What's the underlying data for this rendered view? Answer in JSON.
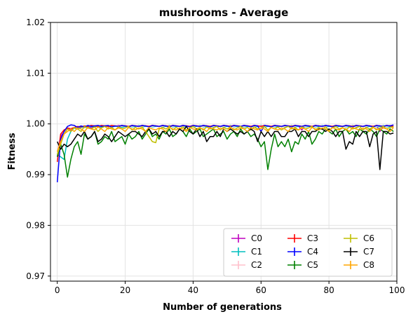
{
  "chart_data": {
    "type": "line",
    "title": "mushrooms - Average",
    "xlabel": "Number of generations",
    "ylabel": "Fitness",
    "xlim": [
      -2,
      100
    ],
    "ylim": [
      0.969,
      1.02
    ],
    "xticks": [
      0,
      20,
      40,
      60,
      80,
      100
    ],
    "xtick_labels": [
      "0",
      "20",
      "40",
      "60",
      "80",
      "100"
    ],
    "yticks": [
      0.97,
      0.98,
      0.99,
      1.0,
      1.01,
      1.02
    ],
    "ytick_labels": [
      "0.97",
      "0.98",
      "0.99",
      "1.00",
      "1.01",
      "1.02"
    ],
    "grid": true,
    "legend": {
      "position": "lower-right",
      "columns": 3
    },
    "series": [
      {
        "name": "C0",
        "color": "#bf00bf",
        "x_start": 0,
        "values": [
          0.9935,
          0.9975,
          0.9985,
          0.999,
          0.9988,
          0.9992,
          0.999,
          0.9994,
          0.9993,
          0.9995,
          0.9992,
          0.9996,
          0.9995,
          0.9993,
          0.9997,
          0.9995,
          0.9994,
          0.9996,
          0.9997,
          0.9995,
          0.9996,
          0.9994,
          0.9997,
          0.9996,
          0.9995,
          0.9997,
          0.9996,
          0.9995,
          0.9997,
          0.9996,
          0.9995,
          0.9997,
          0.9996,
          0.9994,
          0.9997,
          0.9996,
          0.9995,
          0.9997,
          0.9996,
          0.9995,
          0.9997,
          0.9996,
          0.9995,
          0.9997,
          0.9996,
          0.9994,
          0.9997,
          0.9996,
          0.9995,
          0.9997,
          0.9996,
          0.9995,
          0.9997,
          0.9996,
          0.9995,
          0.9997,
          0.9996,
          0.9995,
          0.9997,
          0.9996,
          0.9995,
          0.9997,
          0.9996,
          0.9995,
          0.9997,
          0.9996,
          0.9995,
          0.9997,
          0.9996,
          0.9995,
          0.9997,
          0.9996,
          0.9988,
          0.9997,
          0.9996,
          0.9995,
          0.9997,
          0.9996,
          0.9995,
          0.9997,
          0.9996,
          0.9995,
          0.9997,
          0.9996,
          0.9995,
          0.9997,
          0.9996,
          0.9995,
          0.9997,
          0.9996,
          0.9995,
          0.9997,
          0.9996,
          0.9995,
          0.9997,
          0.9985,
          0.9996,
          0.9995,
          0.9997,
          0.9996
        ]
      },
      {
        "name": "C1",
        "color": "#00bfbf",
        "x_start": 0,
        "values": [
          0.994,
          0.9935,
          0.993,
          0.997,
          0.9985,
          0.9992,
          0.999,
          0.9993,
          0.9994,
          0.9992,
          0.9995,
          0.9994,
          0.9996,
          0.9993,
          0.9995,
          0.9996,
          0.9994,
          0.9995,
          0.9996,
          0.9993,
          0.9995,
          0.9996,
          0.9994,
          0.9995,
          0.9997,
          0.9994,
          0.9995,
          0.9996,
          0.9994,
          0.9995,
          0.9996,
          0.9994,
          0.9995,
          0.9997,
          0.9994,
          0.9995,
          0.9996,
          0.9994,
          0.9995,
          0.9996,
          0.9994,
          0.9995,
          0.9997,
          0.9994,
          0.9995,
          0.9996,
          0.9994,
          0.9995,
          0.9996,
          0.9994,
          0.9995,
          0.9997,
          0.9994,
          0.9995,
          0.9996,
          0.9994,
          0.9995,
          0.9996,
          0.9994,
          0.9995,
          0.9997,
          0.9994,
          0.9995,
          0.9996,
          0.9994,
          0.9995,
          0.9996,
          0.9994,
          0.9995,
          0.9997,
          0.9994,
          0.9995,
          0.9996,
          0.9994,
          0.9995,
          0.9996,
          0.9994,
          0.9995,
          0.9997,
          0.9994,
          0.9995,
          0.9996,
          0.9994,
          0.9995,
          0.9996,
          0.9994,
          0.9995,
          0.9997,
          0.9994,
          0.9995,
          0.9996,
          0.9994,
          0.9995,
          0.9996,
          0.9994,
          0.9995,
          0.9997,
          0.9994,
          0.9995,
          0.9996
        ]
      },
      {
        "name": "C2",
        "color": "#ffc0cb",
        "x_start": 0,
        "values": [
          0.9945,
          0.998,
          0.9985,
          0.999,
          0.9992,
          0.9993,
          0.9994,
          0.9995,
          0.9994,
          0.9996,
          0.9995,
          0.9997,
          0.9996,
          0.9995,
          0.9997,
          0.9996,
          0.9995,
          0.9997,
          0.9996,
          0.9995,
          0.9997,
          0.9996,
          0.9995,
          0.9997,
          0.9996,
          0.9995,
          0.9997,
          0.9996,
          0.9995,
          0.9997,
          0.9996,
          0.9995,
          0.9997,
          0.9996,
          0.9995,
          0.9997,
          0.9996,
          0.9995,
          0.9997,
          0.9996,
          0.9995,
          0.9997,
          0.9996,
          0.9995,
          0.9997,
          0.9996,
          0.9995,
          0.9997,
          0.9996,
          0.9995,
          0.9997,
          0.9996,
          0.9995,
          0.9997,
          0.9996,
          0.9995,
          0.9997,
          0.9996,
          0.9995,
          0.9997,
          0.9996,
          0.9995,
          0.9997,
          0.9996,
          0.9995,
          0.9997,
          0.9996,
          0.9995,
          0.9997,
          0.9996,
          0.9995,
          0.9997,
          0.9996,
          0.9995,
          0.9997,
          0.9996,
          0.9995,
          0.9997,
          0.9996,
          0.9995,
          0.9997,
          0.9996,
          0.9995,
          0.9997,
          0.9996,
          0.9995,
          0.9997,
          0.9996,
          0.9995,
          0.9997,
          0.9996,
          0.9995,
          0.9997,
          0.9996,
          0.9995,
          0.9997,
          0.9996,
          0.9995,
          0.9997,
          0.9996
        ]
      },
      {
        "name": "C3",
        "color": "#ff0000",
        "x_start": 0,
        "values": [
          0.9925,
          0.998,
          0.9988,
          0.9992,
          0.999,
          0.9993,
          0.9995,
          0.9994,
          0.9996,
          0.9995,
          0.9997,
          0.9996,
          0.9995,
          0.9997,
          0.9996,
          0.9995,
          0.9997,
          0.9996,
          0.9995,
          0.9997,
          0.9996,
          0.9995,
          0.9997,
          0.9996,
          0.9995,
          0.9997,
          0.9996,
          0.9995,
          0.9997,
          0.9996,
          0.9995,
          0.9997,
          0.9996,
          0.9995,
          0.9997,
          0.9996,
          0.9995,
          0.9997,
          0.9996,
          0.9995,
          0.9997,
          0.9996,
          0.9995,
          0.9997,
          0.9996,
          0.9995,
          0.9997,
          0.9996,
          0.9995,
          0.9997,
          0.9996,
          0.9995,
          0.9997,
          0.9996,
          0.9995,
          0.9997,
          0.9996,
          0.9995,
          0.9997,
          0.9996,
          0.9995,
          0.9997,
          0.9996,
          0.9995,
          0.9997,
          0.9996,
          0.9995,
          0.9997,
          0.9996,
          0.9995,
          0.9997,
          0.9996,
          0.9995,
          0.9997,
          0.9996,
          0.9995,
          0.9997,
          0.9996,
          0.9995,
          0.9997,
          0.9996,
          0.9995,
          0.9997,
          0.9996,
          0.9995,
          0.9997,
          0.9996,
          0.9995,
          0.9997,
          0.9996,
          0.9995,
          0.9997,
          0.9996,
          0.9995,
          0.9997,
          0.9996,
          0.9995,
          0.9997,
          0.9996,
          0.9995
        ]
      },
      {
        "name": "C4",
        "color": "#0000ff",
        "x_start": 0,
        "values": [
          0.9885,
          0.997,
          0.9985,
          0.9995,
          0.9998,
          0.9997,
          0.9993,
          0.9996,
          0.9994,
          0.9997,
          0.9995,
          0.9996,
          0.9997,
          0.9995,
          0.9996,
          0.9997,
          0.9994,
          0.9996,
          0.9995,
          0.9997,
          0.9996,
          0.9994,
          0.9997,
          0.9996,
          0.9995,
          0.9997,
          0.9996,
          0.9994,
          0.9997,
          0.9996,
          0.9995,
          0.9997,
          0.9996,
          0.9994,
          0.9997,
          0.9996,
          0.9995,
          0.9997,
          0.9996,
          0.9994,
          0.9997,
          0.9996,
          0.9995,
          0.9997,
          0.9996,
          0.9994,
          0.9997,
          0.9996,
          0.9995,
          0.9997,
          0.9996,
          0.9994,
          0.9997,
          0.9996,
          0.9995,
          0.9997,
          0.9996,
          0.9994,
          0.9997,
          0.9996,
          0.9985,
          0.9997,
          0.9996,
          0.9994,
          0.9997,
          0.9996,
          0.9995,
          0.9997,
          0.9996,
          0.9994,
          0.9997,
          0.9996,
          0.9995,
          0.9997,
          0.9996,
          0.9994,
          0.9997,
          0.9996,
          0.9995,
          0.9997,
          0.9996,
          0.9994,
          0.9997,
          0.9996,
          0.9995,
          0.9997,
          0.9996,
          0.9994,
          0.9997,
          0.9996,
          0.9995,
          0.9997,
          0.9996,
          0.9994,
          0.9997,
          0.9996,
          0.9995,
          0.9997,
          0.9996,
          0.9998
        ]
      },
      {
        "name": "C5",
        "color": "#008000",
        "x_start": 0,
        "values": [
          0.9935,
          0.996,
          0.994,
          0.9895,
          0.993,
          0.9955,
          0.9965,
          0.994,
          0.998,
          0.997,
          0.9975,
          0.9985,
          0.996,
          0.9965,
          0.9975,
          0.997,
          0.9985,
          0.9965,
          0.997,
          0.9975,
          0.996,
          0.998,
          0.997,
          0.9975,
          0.9985,
          0.997,
          0.998,
          0.999,
          0.9975,
          0.998,
          0.997,
          0.9985,
          0.998,
          0.999,
          0.9975,
          0.998,
          0.999,
          0.9985,
          0.9975,
          0.999,
          0.998,
          0.9985,
          0.999,
          0.9975,
          0.998,
          0.9985,
          0.999,
          0.9975,
          0.998,
          0.9985,
          0.997,
          0.998,
          0.9985,
          0.9975,
          0.999,
          0.998,
          0.9985,
          0.9975,
          0.998,
          0.997,
          0.9955,
          0.9965,
          0.991,
          0.995,
          0.998,
          0.9955,
          0.9965,
          0.9955,
          0.997,
          0.9945,
          0.9965,
          0.996,
          0.998,
          0.997,
          0.9985,
          0.996,
          0.997,
          0.9985,
          0.998,
          0.999,
          0.9985,
          0.998,
          0.999,
          0.9975,
          0.9985,
          0.999,
          0.998,
          0.9985,
          0.9975,
          0.999,
          0.9985,
          0.998,
          0.999,
          0.9985,
          0.9975,
          0.999,
          0.9985,
          0.998,
          0.999,
          0.9985
        ]
      },
      {
        "name": "C6",
        "color": "#bfbf00",
        "x_start": 0,
        "values": [
          0.994,
          0.996,
          0.998,
          0.999,
          0.9985,
          0.9993,
          0.999,
          0.9985,
          0.9995,
          0.9992,
          0.999,
          0.9994,
          0.9985,
          0.9992,
          0.9995,
          0.999,
          0.9993,
          0.9988,
          0.9994,
          0.999,
          0.9992,
          0.9995,
          0.9988,
          0.9993,
          0.999,
          0.9994,
          0.9985,
          0.9975,
          0.9965,
          0.9963,
          0.999,
          0.9993,
          0.999,
          0.9995,
          0.9988,
          0.9993,
          0.999,
          0.9994,
          0.9988,
          0.9992,
          0.9995,
          0.999,
          0.9993,
          0.9988,
          0.9994,
          0.999,
          0.9992,
          0.9995,
          0.9988,
          0.9993,
          0.999,
          0.9994,
          0.9988,
          0.9992,
          0.9995,
          0.999,
          0.9993,
          0.9988,
          0.9994,
          0.999,
          0.9992,
          0.9995,
          0.9988,
          0.9993,
          0.999,
          0.9994,
          0.9988,
          0.9992,
          0.9995,
          0.999,
          0.9993,
          0.9988,
          0.9994,
          0.999,
          0.9992,
          0.9995,
          0.9988,
          0.9993,
          0.999,
          0.9994,
          0.9988,
          0.9992,
          0.9995,
          0.999,
          0.9993,
          0.9988,
          0.9994,
          0.999,
          0.9992,
          0.9995,
          0.9988,
          0.9993,
          0.999,
          0.9994,
          0.9988,
          0.9992,
          0.9995,
          0.999,
          0.9993,
          0.9994
        ]
      },
      {
        "name": "C7",
        "color": "#000000",
        "x_start": 0,
        "values": [
          0.9965,
          0.995,
          0.996,
          0.9955,
          0.996,
          0.997,
          0.998,
          0.9975,
          0.9985,
          0.997,
          0.9975,
          0.9985,
          0.9965,
          0.997,
          0.998,
          0.9975,
          0.9965,
          0.9975,
          0.9985,
          0.998,
          0.9975,
          0.998,
          0.9985,
          0.9985,
          0.998,
          0.9975,
          0.9985,
          0.999,
          0.998,
          0.9985,
          0.9975,
          0.9985,
          0.9985,
          0.9975,
          0.9985,
          0.998,
          0.999,
          0.9985,
          0.9995,
          0.9985,
          0.998,
          0.999,
          0.9975,
          0.9985,
          0.9965,
          0.9975,
          0.9975,
          0.9985,
          0.9975,
          0.999,
          0.9985,
          0.999,
          0.9985,
          0.998,
          0.9985,
          0.998,
          0.9985,
          0.999,
          0.9985,
          0.9965,
          0.9985,
          0.9975,
          0.9985,
          0.9975,
          0.9985,
          0.9985,
          0.9975,
          0.9975,
          0.9985,
          0.9985,
          0.999,
          0.9975,
          0.9985,
          0.9985,
          0.9975,
          0.9985,
          0.9985,
          0.999,
          0.999,
          0.9985,
          0.999,
          0.9985,
          0.9975,
          0.9985,
          0.9985,
          0.995,
          0.9965,
          0.996,
          0.9985,
          0.9975,
          0.9985,
          0.9985,
          0.9955,
          0.998,
          0.9985,
          0.991,
          0.9985,
          0.9985,
          0.998,
          0.9982
        ]
      },
      {
        "name": "C8",
        "color": "#ffa500",
        "x_start": 0,
        "values": [
          0.9945,
          0.9965,
          0.998,
          0.9985,
          0.999,
          0.9985,
          0.9992,
          0.999,
          0.9985,
          0.9993,
          0.999,
          0.9988,
          0.9994,
          0.999,
          0.9985,
          0.9993,
          0.999,
          0.9988,
          0.9992,
          0.999,
          0.9985,
          0.9993,
          0.999,
          0.9988,
          0.9992,
          0.999,
          0.9985,
          0.9993,
          0.999,
          0.9988,
          0.9992,
          0.999,
          0.9985,
          0.9993,
          0.999,
          0.9988,
          0.9992,
          0.999,
          0.9985,
          0.9993,
          0.999,
          0.9988,
          0.9992,
          0.999,
          0.9985,
          0.9993,
          0.999,
          0.9988,
          0.9992,
          0.999,
          0.9985,
          0.9993,
          0.999,
          0.9988,
          0.9992,
          0.999,
          0.9985,
          0.9993,
          0.999,
          0.9988,
          0.9992,
          0.999,
          0.9985,
          0.9993,
          0.999,
          0.9988,
          0.9992,
          0.999,
          0.9985,
          0.9993,
          0.999,
          0.9988,
          0.9992,
          0.999,
          0.9985,
          0.9993,
          0.999,
          0.9988,
          0.9992,
          0.999,
          0.9985,
          0.9993,
          0.999,
          0.9988,
          0.9992,
          0.999,
          0.9985,
          0.9993,
          0.999,
          0.9988,
          0.9992,
          0.999,
          0.9985,
          0.9993,
          0.999,
          0.9988,
          0.9992,
          0.999,
          0.9985,
          0.9993
        ]
      }
    ]
  }
}
